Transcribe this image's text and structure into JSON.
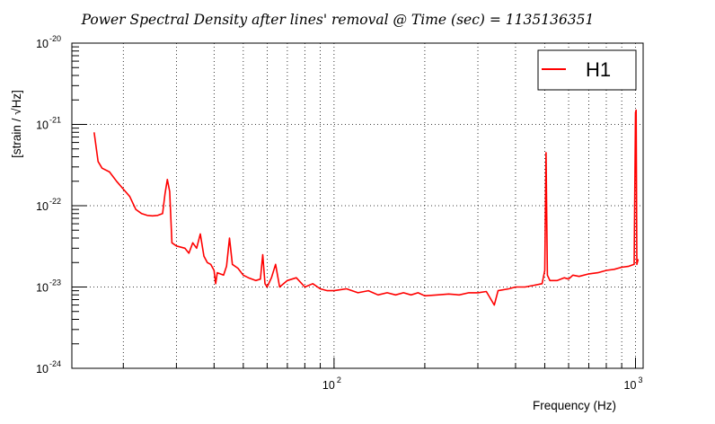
{
  "chart_data": {
    "type": "line",
    "title": "Power Spectral Density after lines' removal @ Time (sec) = 1135136351",
    "xlabel": "Frequency (Hz)",
    "ylabel": "[strain / √Hz]",
    "xscale": "log",
    "yscale": "log",
    "xlim": [
      13.5,
      1060
    ],
    "ylim": [
      1e-24,
      1e-20
    ],
    "grid": true,
    "legend_position": "top-right",
    "x_tick_labels": [
      {
        "value": 100,
        "base": "10",
        "exp": "2"
      },
      {
        "value": 1000,
        "base": "10",
        "exp": "3"
      }
    ],
    "y_tick_labels": [
      {
        "value": 1e-24,
        "base": "10",
        "exp": "-24"
      },
      {
        "value": 1e-23,
        "base": "10",
        "exp": "-23"
      },
      {
        "value": 1e-22,
        "base": "10",
        "exp": "-22"
      },
      {
        "value": 1e-21,
        "base": "10",
        "exp": "-21"
      },
      {
        "value": 1e-20,
        "base": "10",
        "exp": "-20"
      }
    ],
    "series": [
      {
        "name": "H1",
        "color": "#ff0000",
        "points": [
          [
            16,
            8e-22
          ],
          [
            16.5,
            3.5e-22
          ],
          [
            17,
            2.9e-22
          ],
          [
            18,
            2.6e-22
          ],
          [
            19,
            2e-22
          ],
          [
            20,
            1.6e-22
          ],
          [
            21,
            1.3e-22
          ],
          [
            22,
            9e-23
          ],
          [
            23,
            8e-23
          ],
          [
            24,
            7.6e-23
          ],
          [
            25,
            7.5e-23
          ],
          [
            26,
            7.6e-23
          ],
          [
            27,
            8e-23
          ],
          [
            27.5,
            1.4e-22
          ],
          [
            28,
            2.1e-22
          ],
          [
            28.5,
            1.5e-22
          ],
          [
            29,
            3.5e-23
          ],
          [
            30,
            3.2e-23
          ],
          [
            32,
            3e-23
          ],
          [
            33,
            2.6e-23
          ],
          [
            34,
            3.5e-23
          ],
          [
            35,
            3e-23
          ],
          [
            36,
            4.5e-23
          ],
          [
            37,
            2.4e-23
          ],
          [
            38,
            2e-23
          ],
          [
            39,
            1.9e-23
          ],
          [
            40,
            1.6e-23
          ],
          [
            40.5,
            1.1e-23
          ],
          [
            41,
            1.5e-23
          ],
          [
            43,
            1.4e-23
          ],
          [
            44,
            1.8e-23
          ],
          [
            45,
            4e-23
          ],
          [
            46,
            1.9e-23
          ],
          [
            48,
            1.7e-23
          ],
          [
            50,
            1.4e-23
          ],
          [
            52,
            1.3e-23
          ],
          [
            55,
            1.2e-23
          ],
          [
            57,
            1.25e-23
          ],
          [
            58,
            2.5e-23
          ],
          [
            59,
            1.1e-23
          ],
          [
            60,
            1e-23
          ],
          [
            62,
            1.3e-23
          ],
          [
            64,
            1.9e-23
          ],
          [
            66,
            1e-23
          ],
          [
            70,
            1.2e-23
          ],
          [
            75,
            1.3e-23
          ],
          [
            80,
            1e-23
          ],
          [
            85,
            1.1e-23
          ],
          [
            90,
            9.5e-24
          ],
          [
            95,
            9e-24
          ],
          [
            100,
            9e-24
          ],
          [
            110,
            9.5e-24
          ],
          [
            120,
            8.5e-24
          ],
          [
            130,
            9e-24
          ],
          [
            140,
            8e-24
          ],
          [
            150,
            8.5e-24
          ],
          [
            160,
            8e-24
          ],
          [
            170,
            8.5e-24
          ],
          [
            180,
            8e-24
          ],
          [
            190,
            8.5e-24
          ],
          [
            200,
            7.8e-24
          ],
          [
            220,
            8e-24
          ],
          [
            240,
            8.2e-24
          ],
          [
            260,
            8e-24
          ],
          [
            280,
            8.5e-24
          ],
          [
            300,
            8.5e-24
          ],
          [
            320,
            8.8e-24
          ],
          [
            340,
            6e-24
          ],
          [
            350,
            9e-24
          ],
          [
            380,
            9.5e-24
          ],
          [
            400,
            1e-23
          ],
          [
            430,
            1e-23
          ],
          [
            460,
            1.05e-23
          ],
          [
            490,
            1.1e-23
          ],
          [
            500,
            1.6e-23
          ],
          [
            505,
            4.5e-22
          ],
          [
            510,
            1.4e-23
          ],
          [
            520,
            1.2e-23
          ],
          [
            550,
            1.2e-23
          ],
          [
            580,
            1.3e-23
          ],
          [
            600,
            1.25e-23
          ],
          [
            620,
            1.4e-23
          ],
          [
            650,
            1.35e-23
          ],
          [
            700,
            1.45e-23
          ],
          [
            750,
            1.5e-23
          ],
          [
            800,
            1.6e-23
          ],
          [
            850,
            1.65e-23
          ],
          [
            900,
            1.75e-23
          ],
          [
            950,
            1.8e-23
          ],
          [
            990,
            1.9e-23
          ],
          [
            1000,
            1.4e-21
          ],
          [
            1005,
            1.5e-21
          ],
          [
            1010,
            1.9e-23
          ],
          [
            1020,
            2.2e-23
          ]
        ]
      }
    ]
  }
}
